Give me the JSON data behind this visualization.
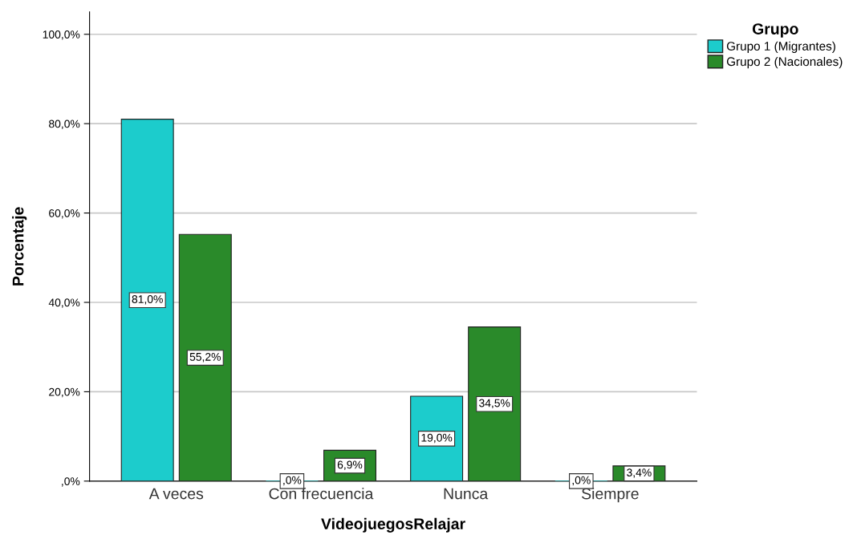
{
  "chart_data": {
    "type": "bar",
    "xlabel": "VideojuegosRelajar",
    "ylabel": "Porcentaje",
    "legend_title": "Grupo",
    "categories": [
      "A veces",
      "Con frecuencia",
      "Nunca",
      "Siempre"
    ],
    "series": [
      {
        "name": "Grupo 1 (Migrantes)",
        "color": "#1ccccc",
        "values": [
          81.0,
          0.0,
          19.0,
          0.0
        ],
        "value_labels": [
          "81,0%",
          ",0%",
          "19,0%",
          ",0%"
        ]
      },
      {
        "name": "Grupo 2 (Nacionales)",
        "color": "#2a8a2a",
        "values": [
          55.2,
          6.9,
          34.5,
          3.4
        ],
        "value_labels": [
          "55,2%",
          "6,9%",
          "34,5%",
          "3,4%"
        ]
      }
    ],
    "ylim": [
      0,
      105
    ],
    "yticks": [
      {
        "value": 0,
        "label": ",0%"
      },
      {
        "value": 20,
        "label": "20,0%"
      },
      {
        "value": 40,
        "label": "40,0%"
      },
      {
        "value": 60,
        "label": "60,0%"
      },
      {
        "value": 80,
        "label": "80,0%"
      },
      {
        "value": 100,
        "label": "100,0%"
      }
    ],
    "grid": "y",
    "legend": "top right"
  }
}
